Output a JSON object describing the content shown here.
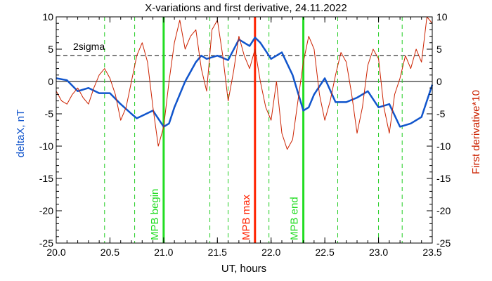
{
  "chart_data": {
    "type": "line",
    "title": "X-variations and first derivative, 24.11.2022",
    "xlabel": "UT, hours",
    "ylabel_left": "deltaX, nT",
    "ylabel_right": "First derivative*10",
    "xlim": [
      20.0,
      23.5
    ],
    "ylim": [
      -25,
      10
    ],
    "x_ticks": [
      "20.0",
      "20.5",
      "21.0",
      "21.5",
      "22.0",
      "22.5",
      "23.0",
      "23.5"
    ],
    "y_ticks_left": [
      "10",
      "5",
      "0",
      "-5",
      "-10",
      "-15",
      "-20",
      "-25"
    ],
    "y_ticks_right": [
      "10",
      "5",
      "0",
      "-5",
      "-10",
      "-15",
      "-20",
      "-25"
    ],
    "threshold": {
      "label": "2sigma",
      "y": 4.0
    },
    "markers": [
      {
        "label": "MPB begin",
        "x": 21.0,
        "color": "#22dd22"
      },
      {
        "label": "MPB max",
        "x": 21.85,
        "color": "#ff2200"
      },
      {
        "label": "MPB end",
        "x": 22.3,
        "color": "#22dd22"
      }
    ],
    "dashed_lines_x": [
      20.45,
      20.73,
      21.43,
      21.6,
      21.98,
      22.62,
      23.0,
      23.22
    ],
    "series": [
      {
        "axis": "left",
        "color": "#1155cc",
        "x": [
          20.0,
          20.1,
          20.2,
          20.3,
          20.4,
          20.5,
          20.6,
          20.7,
          20.75,
          20.8,
          20.9,
          21.0,
          21.05,
          21.1,
          21.2,
          21.3,
          21.35,
          21.4,
          21.5,
          21.6,
          21.7,
          21.75,
          21.8,
          21.85,
          21.9,
          22.0,
          22.1,
          22.2,
          22.3,
          22.35,
          22.4,
          22.5,
          22.6,
          22.7,
          22.8,
          22.9,
          23.0,
          23.1,
          23.2,
          23.3,
          23.4,
          23.5
        ],
        "values": [
          0.5,
          0.2,
          -1.5,
          -1.0,
          -1.8,
          -1.8,
          -3.5,
          -5.0,
          -5.7,
          -5.3,
          -4.5,
          -7.0,
          -6.5,
          -4.0,
          0.0,
          3.0,
          4.0,
          3.5,
          4.0,
          3.3,
          6.5,
          6.0,
          5.5,
          6.8,
          6.0,
          3.5,
          4.5,
          1.0,
          -4.5,
          -4.0,
          -2.0,
          0.5,
          -3.2,
          -3.2,
          -2.5,
          -1.5,
          -4.0,
          -3.5,
          -7.0,
          -6.5,
          -5.5,
          -0.5
        ]
      },
      {
        "axis": "right",
        "color": "#cc2200",
        "x": [
          20.0,
          20.05,
          20.1,
          20.15,
          20.2,
          20.25,
          20.3,
          20.35,
          20.4,
          20.45,
          20.5,
          20.55,
          20.6,
          20.65,
          20.7,
          20.75,
          20.8,
          20.85,
          20.9,
          20.95,
          21.0,
          21.05,
          21.1,
          21.15,
          21.2,
          21.25,
          21.3,
          21.35,
          21.4,
          21.45,
          21.5,
          21.55,
          21.6,
          21.65,
          21.7,
          21.75,
          21.8,
          21.85,
          21.9,
          21.95,
          22.0,
          22.05,
          22.1,
          22.15,
          22.2,
          22.25,
          22.3,
          22.35,
          22.4,
          22.45,
          22.5,
          22.55,
          22.6,
          22.65,
          22.7,
          22.75,
          22.8,
          22.85,
          22.9,
          22.95,
          23.0,
          23.05,
          23.1,
          23.15,
          23.2,
          23.25,
          23.3,
          23.35,
          23.4,
          23.45,
          23.5
        ],
        "values": [
          -1.5,
          -3.0,
          -3.5,
          -2.0,
          -1.0,
          -2.5,
          -3.5,
          -1.0,
          1.0,
          2.0,
          0.5,
          -2.0,
          -6.0,
          -4.0,
          0.0,
          4.0,
          6.0,
          3.0,
          -4.0,
          -10.0,
          -7.0,
          0.0,
          6.0,
          9.5,
          5.0,
          7.0,
          8.0,
          2.0,
          -1.5,
          8.0,
          9.5,
          4.0,
          -3.0,
          1.5,
          7.0,
          4.0,
          2.0,
          5.0,
          0.0,
          -4.0,
          -6.0,
          0.0,
          -8.0,
          -10.5,
          -9.0,
          -3.0,
          3.0,
          7.0,
          5.0,
          -2.0,
          -6.0,
          -3.0,
          1.0,
          4.5,
          3.0,
          -2.0,
          -8.0,
          -4.0,
          2.5,
          5.0,
          3.5,
          -4.0,
          -8.0,
          -2.0,
          0.5,
          4.0,
          2.0,
          5.0,
          3.0,
          10.0,
          9.0
        ]
      }
    ]
  }
}
